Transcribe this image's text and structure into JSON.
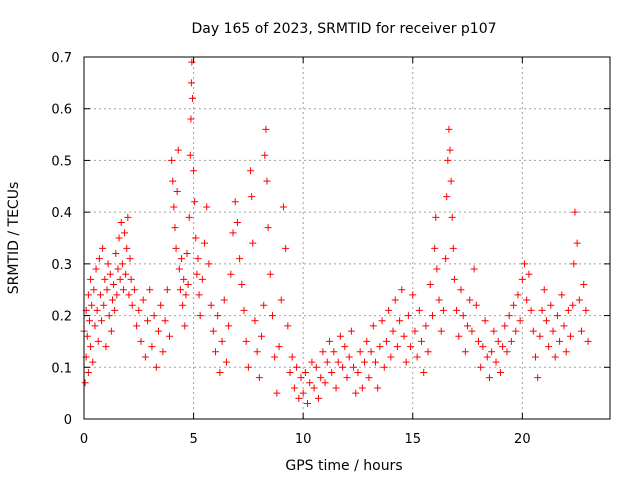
{
  "chart_data": {
    "type": "scatter",
    "title": "Day 165 of 2023, SRMTID for receiver p107",
    "xlabel": "GPS time / hours",
    "ylabel": "SRMTID / TECUs",
    "xlim": [
      0,
      24
    ],
    "ylim": [
      0,
      0.7
    ],
    "xticks": [
      0,
      5,
      10,
      15,
      20
    ],
    "xtick_labels": [
      "0",
      "5",
      "10",
      "15",
      "20"
    ],
    "yticks": [
      0,
      0.1,
      0.2,
      0.3,
      0.4,
      0.5,
      0.6,
      0.7
    ],
    "ytick_labels": [
      "0",
      "0.1",
      "0.2",
      "0.3",
      "0.4",
      "0.5",
      "0.6",
      "0.7"
    ],
    "grid": true,
    "marker": "+",
    "marker_color": "#ff0000",
    "series": [
      {
        "name": "SRMTID",
        "points": [
          [
            0.0,
            0.17
          ],
          [
            0.05,
            0.07
          ],
          [
            0.1,
            0.21
          ],
          [
            0.1,
            0.12
          ],
          [
            0.15,
            0.16
          ],
          [
            0.2,
            0.24
          ],
          [
            0.2,
            0.09
          ],
          [
            0.25,
            0.19
          ],
          [
            0.3,
            0.27
          ],
          [
            0.3,
            0.14
          ],
          [
            0.35,
            0.22
          ],
          [
            0.4,
            0.11
          ],
          [
            0.45,
            0.25
          ],
          [
            0.5,
            0.18
          ],
          [
            0.55,
            0.29
          ],
          [
            0.6,
            0.21
          ],
          [
            0.65,
            0.15
          ],
          [
            0.7,
            0.31
          ],
          [
            0.75,
            0.24
          ],
          [
            0.8,
            0.19
          ],
          [
            0.85,
            0.33
          ],
          [
            0.9,
            0.22
          ],
          [
            0.95,
            0.27
          ],
          [
            1.0,
            0.14
          ],
          [
            1.05,
            0.25
          ],
          [
            1.1,
            0.3
          ],
          [
            1.15,
            0.2
          ],
          [
            1.2,
            0.28
          ],
          [
            1.25,
            0.17
          ],
          [
            1.3,
            0.23
          ],
          [
            1.35,
            0.26
          ],
          [
            1.4,
            0.21
          ],
          [
            1.45,
            0.32
          ],
          [
            1.5,
            0.24
          ],
          [
            1.55,
            0.29
          ],
          [
            1.6,
            0.35
          ],
          [
            1.65,
            0.27
          ],
          [
            1.7,
            0.38
          ],
          [
            1.75,
            0.3
          ],
          [
            1.8,
            0.25
          ],
          [
            1.85,
            0.36
          ],
          [
            1.9,
            0.28
          ],
          [
            1.95,
            0.33
          ],
          [
            2.0,
            0.39
          ],
          [
            2.05,
            0.24
          ],
          [
            2.1,
            0.31
          ],
          [
            2.15,
            0.27
          ],
          [
            2.2,
            0.22
          ],
          [
            2.3,
            0.25
          ],
          [
            2.4,
            0.18
          ],
          [
            2.5,
            0.21
          ],
          [
            2.6,
            0.15
          ],
          [
            2.7,
            0.23
          ],
          [
            2.8,
            0.12
          ],
          [
            2.9,
            0.19
          ],
          [
            3.0,
            0.25
          ],
          [
            3.1,
            0.14
          ],
          [
            3.2,
            0.2
          ],
          [
            3.3,
            0.1
          ],
          [
            3.4,
            0.17
          ],
          [
            3.5,
            0.22
          ],
          [
            3.6,
            0.13
          ],
          [
            3.7,
            0.19
          ],
          [
            3.8,
            0.25
          ],
          [
            3.9,
            0.16
          ],
          [
            4.0,
            0.5
          ],
          [
            4.05,
            0.46
          ],
          [
            4.1,
            0.41
          ],
          [
            4.15,
            0.37
          ],
          [
            4.2,
            0.33
          ],
          [
            4.25,
            0.44
          ],
          [
            4.3,
            0.52
          ],
          [
            4.35,
            0.29
          ],
          [
            4.4,
            0.25
          ],
          [
            4.45,
            0.31
          ],
          [
            4.5,
            0.22
          ],
          [
            4.55,
            0.27
          ],
          [
            4.6,
            0.18
          ],
          [
            4.65,
            0.24
          ],
          [
            4.7,
            0.32
          ],
          [
            4.75,
            0.26
          ],
          [
            4.8,
            0.39
          ],
          [
            4.85,
            0.51
          ],
          [
            4.88,
            0.58
          ],
          [
            4.9,
            0.65
          ],
          [
            4.92,
            0.69
          ],
          [
            4.95,
            0.62
          ],
          [
            5.0,
            0.48
          ],
          [
            5.05,
            0.42
          ],
          [
            5.1,
            0.35
          ],
          [
            5.15,
            0.28
          ],
          [
            5.2,
            0.31
          ],
          [
            5.25,
            0.24
          ],
          [
            5.3,
            0.2
          ],
          [
            5.4,
            0.27
          ],
          [
            5.5,
            0.34
          ],
          [
            5.6,
            0.41
          ],
          [
            5.7,
            0.3
          ],
          [
            5.8,
            0.22
          ],
          [
            5.9,
            0.17
          ],
          [
            6.0,
            0.13
          ],
          [
            6.1,
            0.2
          ],
          [
            6.2,
            0.09
          ],
          [
            6.3,
            0.15
          ],
          [
            6.4,
            0.23
          ],
          [
            6.5,
            0.11
          ],
          [
            6.6,
            0.18
          ],
          [
            6.7,
            0.28
          ],
          [
            6.8,
            0.36
          ],
          [
            6.9,
            0.42
          ],
          [
            7.0,
            0.38
          ],
          [
            7.1,
            0.31
          ],
          [
            7.2,
            0.26
          ],
          [
            7.3,
            0.21
          ],
          [
            7.4,
            0.15
          ],
          [
            7.5,
            0.1
          ],
          [
            7.6,
            0.48
          ],
          [
            7.65,
            0.43
          ],
          [
            7.7,
            0.34
          ],
          [
            7.8,
            0.19
          ],
          [
            7.9,
            0.13
          ],
          [
            8.0,
            0.08
          ],
          [
            8.1,
            0.16
          ],
          [
            8.2,
            0.22
          ],
          [
            8.25,
            0.51
          ],
          [
            8.3,
            0.56
          ],
          [
            8.35,
            0.46
          ],
          [
            8.4,
            0.37
          ],
          [
            8.5,
            0.28
          ],
          [
            8.6,
            0.2
          ],
          [
            8.7,
            0.12
          ],
          [
            8.8,
            0.05
          ],
          [
            8.9,
            0.14
          ],
          [
            9.0,
            0.23
          ],
          [
            9.1,
            0.41
          ],
          [
            9.2,
            0.33
          ],
          [
            9.3,
            0.18
          ],
          [
            9.4,
            0.09
          ],
          [
            9.5,
            0.12
          ],
          [
            9.6,
            0.06
          ],
          [
            9.7,
            0.1
          ],
          [
            9.8,
            0.04
          ],
          [
            9.9,
            0.08
          ],
          [
            10.0,
            0.05
          ],
          [
            10.1,
            0.09
          ],
          [
            10.2,
            0.03
          ],
          [
            10.3,
            0.07
          ],
          [
            10.4,
            0.11
          ],
          [
            10.5,
            0.06
          ],
          [
            10.6,
            0.1
          ],
          [
            10.7,
            0.04
          ],
          [
            10.8,
            0.08
          ],
          [
            10.9,
            0.13
          ],
          [
            11.0,
            0.07
          ],
          [
            11.1,
            0.11
          ],
          [
            11.2,
            0.15
          ],
          [
            11.3,
            0.09
          ],
          [
            11.4,
            0.13
          ],
          [
            11.5,
            0.06
          ],
          [
            11.6,
            0.11
          ],
          [
            11.7,
            0.16
          ],
          [
            11.8,
            0.1
          ],
          [
            11.9,
            0.14
          ],
          [
            12.0,
            0.08
          ],
          [
            12.1,
            0.12
          ],
          [
            12.2,
            0.17
          ],
          [
            12.3,
            0.1
          ],
          [
            12.4,
            0.05
          ],
          [
            12.5,
            0.09
          ],
          [
            12.6,
            0.13
          ],
          [
            12.7,
            0.06
          ],
          [
            12.8,
            0.11
          ],
          [
            12.9,
            0.15
          ],
          [
            13.0,
            0.08
          ],
          [
            13.1,
            0.13
          ],
          [
            13.2,
            0.18
          ],
          [
            13.3,
            0.11
          ],
          [
            13.4,
            0.06
          ],
          [
            13.5,
            0.14
          ],
          [
            13.6,
            0.19
          ],
          [
            13.7,
            0.1
          ],
          [
            13.8,
            0.15
          ],
          [
            13.9,
            0.21
          ],
          [
            14.0,
            0.12
          ],
          [
            14.1,
            0.17
          ],
          [
            14.2,
            0.23
          ],
          [
            14.3,
            0.14
          ],
          [
            14.4,
            0.19
          ],
          [
            14.5,
            0.25
          ],
          [
            14.6,
            0.16
          ],
          [
            14.7,
            0.11
          ],
          [
            14.8,
            0.2
          ],
          [
            14.9,
            0.14
          ],
          [
            15.0,
            0.24
          ],
          [
            15.1,
            0.17
          ],
          [
            15.2,
            0.12
          ],
          [
            15.3,
            0.21
          ],
          [
            15.4,
            0.15
          ],
          [
            15.5,
            0.09
          ],
          [
            15.6,
            0.18
          ],
          [
            15.7,
            0.13
          ],
          [
            15.8,
            0.26
          ],
          [
            15.9,
            0.2
          ],
          [
            16.0,
            0.33
          ],
          [
            16.05,
            0.39
          ],
          [
            16.1,
            0.29
          ],
          [
            16.2,
            0.23
          ],
          [
            16.3,
            0.17
          ],
          [
            16.4,
            0.21
          ],
          [
            16.5,
            0.31
          ],
          [
            16.55,
            0.43
          ],
          [
            16.6,
            0.5
          ],
          [
            16.65,
            0.56
          ],
          [
            16.7,
            0.52
          ],
          [
            16.75,
            0.46
          ],
          [
            16.8,
            0.39
          ],
          [
            16.85,
            0.33
          ],
          [
            16.9,
            0.27
          ],
          [
            17.0,
            0.21
          ],
          [
            17.1,
            0.16
          ],
          [
            17.2,
            0.25
          ],
          [
            17.3,
            0.2
          ],
          [
            17.4,
            0.13
          ],
          [
            17.5,
            0.18
          ],
          [
            17.6,
            0.23
          ],
          [
            17.7,
            0.17
          ],
          [
            17.8,
            0.29
          ],
          [
            17.9,
            0.22
          ],
          [
            18.0,
            0.15
          ],
          [
            18.1,
            0.1
          ],
          [
            18.2,
            0.14
          ],
          [
            18.3,
            0.19
          ],
          [
            18.4,
            0.12
          ],
          [
            18.5,
            0.08
          ],
          [
            18.6,
            0.13
          ],
          [
            18.7,
            0.17
          ],
          [
            18.8,
            0.11
          ],
          [
            18.9,
            0.15
          ],
          [
            19.0,
            0.09
          ],
          [
            19.1,
            0.14
          ],
          [
            19.2,
            0.18
          ],
          [
            19.3,
            0.13
          ],
          [
            19.4,
            0.2
          ],
          [
            19.5,
            0.15
          ],
          [
            19.6,
            0.22
          ],
          [
            19.7,
            0.17
          ],
          [
            19.8,
            0.24
          ],
          [
            19.9,
            0.19
          ],
          [
            20.0,
            0.27
          ],
          [
            20.1,
            0.3
          ],
          [
            20.2,
            0.23
          ],
          [
            20.3,
            0.28
          ],
          [
            20.4,
            0.21
          ],
          [
            20.5,
            0.17
          ],
          [
            20.6,
            0.12
          ],
          [
            20.7,
            0.08
          ],
          [
            20.8,
            0.16
          ],
          [
            20.9,
            0.21
          ],
          [
            21.0,
            0.25
          ],
          [
            21.1,
            0.19
          ],
          [
            21.2,
            0.14
          ],
          [
            21.3,
            0.22
          ],
          [
            21.4,
            0.17
          ],
          [
            21.5,
            0.12
          ],
          [
            21.6,
            0.2
          ],
          [
            21.7,
            0.15
          ],
          [
            21.8,
            0.24
          ],
          [
            21.9,
            0.18
          ],
          [
            22.0,
            0.13
          ],
          [
            22.1,
            0.21
          ],
          [
            22.2,
            0.16
          ],
          [
            22.3,
            0.22
          ],
          [
            22.35,
            0.3
          ],
          [
            22.4,
            0.4
          ],
          [
            22.5,
            0.34
          ],
          [
            22.6,
            0.23
          ],
          [
            22.7,
            0.17
          ],
          [
            22.8,
            0.26
          ],
          [
            22.9,
            0.21
          ],
          [
            23.0,
            0.15
          ]
        ]
      }
    ]
  }
}
